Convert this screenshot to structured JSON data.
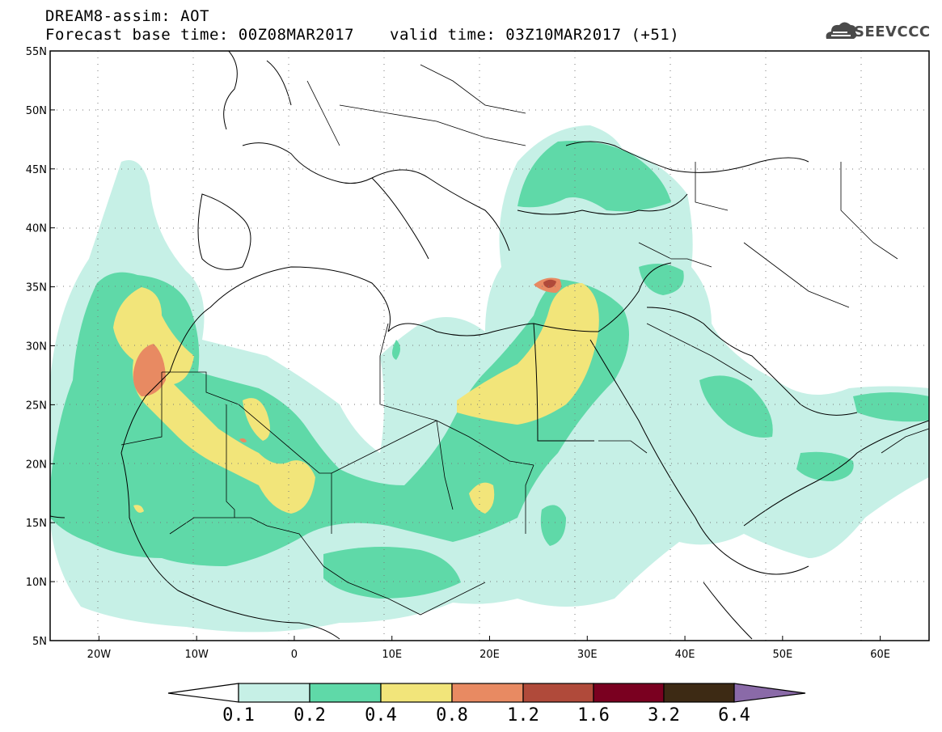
{
  "header": {
    "line1": "DREAM8-assim: AOT",
    "line2": "Forecast base time: 00Z08MAR2017",
    "line3": "valid time: 03Z10MAR2017 (+51)",
    "logo_text": "SEEVCCC"
  },
  "axes": {
    "lon_range": [
      -25,
      65
    ],
    "lat_range": [
      5,
      55
    ],
    "x_ticks": [
      {
        "value": -20,
        "label": "20W"
      },
      {
        "value": -10,
        "label": "10W"
      },
      {
        "value": 0,
        "label": "0"
      },
      {
        "value": 10,
        "label": "10E"
      },
      {
        "value": 20,
        "label": "20E"
      },
      {
        "value": 30,
        "label": "30E"
      },
      {
        "value": 40,
        "label": "40E"
      },
      {
        "value": 50,
        "label": "50E"
      },
      {
        "value": 60,
        "label": "60E"
      }
    ],
    "y_ticks": [
      {
        "value": 55,
        "label": "55N"
      },
      {
        "value": 50,
        "label": "50N"
      },
      {
        "value": 45,
        "label": "45N"
      },
      {
        "value": 40,
        "label": "40N"
      },
      {
        "value": 35,
        "label": "35N"
      },
      {
        "value": 30,
        "label": "30N"
      },
      {
        "value": 25,
        "label": "25N"
      },
      {
        "value": 20,
        "label": "20N"
      },
      {
        "value": 15,
        "label": "15N"
      },
      {
        "value": 10,
        "label": "10N"
      },
      {
        "value": 5,
        "label": "5N"
      }
    ],
    "grid": "dotted"
  },
  "colorbar": {
    "labels": [
      "0.1",
      "0.2",
      "0.4",
      "0.8",
      "1.2",
      "1.6",
      "3.2",
      "6.4"
    ],
    "colors": [
      "#ffffff",
      "#c6f0e6",
      "#5fd9a8",
      "#f2e57a",
      "#e88a62",
      "#b04a3a",
      "#7a0020",
      "#3d2a14",
      "#8a6aa8"
    ]
  },
  "colors": {
    "aot_0_1": "#c6f0e6",
    "aot_0_2": "#5fd9a8",
    "aot_0_4": "#f2e57a",
    "aot_0_8": "#e88a62",
    "aot_1_2": "#b04a3a"
  }
}
